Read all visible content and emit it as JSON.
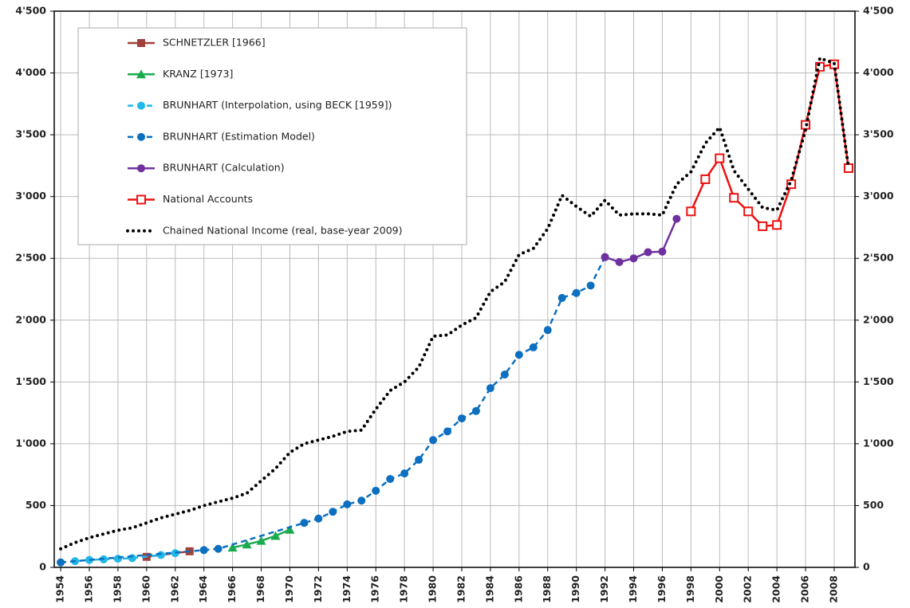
{
  "chart_data": {
    "type": "line",
    "xlim": [
      1953.55,
      2009.45
    ],
    "xticks": [
      1954,
      1956,
      1958,
      1960,
      1962,
      1964,
      1966,
      1968,
      1970,
      1972,
      1974,
      1976,
      1978,
      1980,
      1982,
      1984,
      1986,
      1988,
      1990,
      1992,
      1994,
      1996,
      1998,
      2000,
      2002,
      2004,
      2006,
      2008
    ],
    "ylim": [
      0,
      4500
    ],
    "yticks": [
      0,
      500,
      {
        "value": 1000,
        "label": "1'000"
      },
      {
        "value": 1500,
        "label": "1'500"
      },
      {
        "value": 2000,
        "label": "2'000"
      },
      {
        "value": 2500,
        "label": "2'500"
      },
      {
        "value": 3000,
        "label": "3'000"
      },
      {
        "value": 3500,
        "label": "3'500"
      },
      {
        "value": 4000,
        "label": "4'000"
      },
      {
        "value": 4500,
        "label": "4'500"
      }
    ],
    "grid": true,
    "right_axis_labels": true,
    "legend": "upper-left",
    "series": [
      {
        "name": "SCHNETZLER [1966]",
        "color": "#a0413c",
        "marker": "square",
        "dash": "solid",
        "x": [
          1960,
          1963
        ],
        "values": [
          85,
          130
        ]
      },
      {
        "name": "KRANZ [1973]",
        "color": "#1aab4f",
        "marker": "triangle",
        "dash": "solid",
        "x": [
          1966,
          1967,
          1968,
          1969,
          1970
        ],
        "values": [
          160,
          185,
          215,
          255,
          305
        ]
      },
      {
        "name": "BRUNHART (Interpolation, using BECK [1959])",
        "color": "#1fb8e8",
        "marker": "circle",
        "dash": "dashed",
        "x": [
          1955,
          1956,
          1957,
          1958,
          1959,
          1961,
          1962
        ],
        "values": [
          50,
          60,
          65,
          70,
          75,
          100,
          115
        ]
      },
      {
        "name": "BRUNHART (Estimation Model)",
        "color": "#0c6fc0",
        "marker": "circle",
        "dash": "dashed",
        "x": [
          1954,
          1964,
          1965,
          1971,
          1972,
          1973,
          1974,
          1975,
          1976,
          1977,
          1978,
          1979,
          1980,
          1981,
          1982,
          1983,
          1984,
          1985,
          1986,
          1987,
          1988,
          1989,
          1990,
          1991,
          1992
        ],
        "values": [
          40,
          140,
          150,
          360,
          395,
          450,
          510,
          540,
          620,
          715,
          760,
          870,
          1030,
          1100,
          1205,
          1265,
          1450,
          1560,
          1720,
          1780,
          1920,
          2180,
          2220,
          2280,
          2510
        ]
      },
      {
        "name": "BRUNHART (Calculation)",
        "color": "#7030a0",
        "marker": "circle",
        "dash": "solid",
        "x": [
          1992,
          1993,
          1994,
          1995,
          1996,
          1997
        ],
        "values": [
          2510,
          2470,
          2500,
          2550,
          2555,
          2820
        ]
      },
      {
        "name": "National Accounts",
        "color": "#ee1111",
        "marker": "open-square",
        "dash": "solid",
        "x": [
          1998,
          1999,
          2000,
          2001,
          2002,
          2003,
          2004,
          2005,
          2006,
          2007,
          2008,
          2009
        ],
        "values": [
          2880,
          3140,
          3310,
          2990,
          2880,
          2760,
          2770,
          3100,
          3580,
          4050,
          4070,
          3230
        ]
      },
      {
        "name": "Chained National Income (real, base-year 2009)",
        "color": "#000000",
        "marker": "none",
        "dash": "dotted",
        "x": [
          1954,
          1955,
          1956,
          1957,
          1958,
          1959,
          1960,
          1961,
          1962,
          1963,
          1964,
          1965,
          1966,
          1967,
          1968,
          1969,
          1970,
          1971,
          1972,
          1973,
          1974,
          1975,
          1976,
          1977,
          1978,
          1979,
          1980,
          1981,
          1982,
          1983,
          1984,
          1985,
          1986,
          1987,
          1988,
          1989,
          1990,
          1991,
          1992,
          1993,
          1994,
          1995,
          1996,
          1997,
          1998,
          1999,
          2000,
          2001,
          2002,
          2003,
          2004,
          2005,
          2006,
          2007,
          2008,
          2009
        ],
        "values": [
          150,
          200,
          240,
          270,
          300,
          320,
          360,
          400,
          430,
          460,
          500,
          530,
          560,
          600,
          700,
          800,
          930,
          1000,
          1030,
          1060,
          1100,
          1110,
          1280,
          1430,
          1500,
          1620,
          1870,
          1880,
          1960,
          2020,
          2230,
          2310,
          2530,
          2580,
          2740,
          3010,
          2920,
          2840,
          2970,
          2850,
          2860,
          2860,
          2850,
          3100,
          3200,
          3430,
          3560,
          3210,
          3060,
          2910,
          2890,
          3130,
          3540,
          4120,
          4080,
          3230
        ]
      }
    ]
  }
}
